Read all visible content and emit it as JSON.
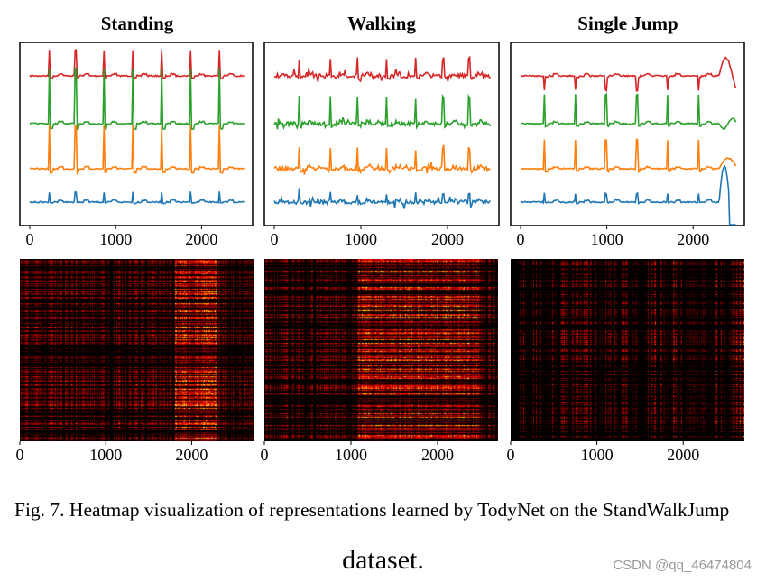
{
  "chart_data": [
    {
      "type": "line",
      "title": "Standing",
      "xlim": [
        0,
        2500
      ],
      "xticks": [
        "0",
        "1000",
        "2000"
      ],
      "grid": false,
      "series_colors": [
        "#d62728",
        "#2ca02c",
        "#ff7f0e",
        "#1f77b4"
      ],
      "spikes_x": [
        225,
        535,
        860,
        1200,
        1540,
        1870,
        2210
      ],
      "spike_amplitude": [
        0.9,
        1.9,
        1.5,
        0.35
      ],
      "disruption_from": null
    },
    {
      "type": "line",
      "title": "Walking",
      "xlim": [
        0,
        2500
      ],
      "xticks": [
        "0",
        "1000",
        "2000"
      ],
      "grid": false,
      "series_colors": [
        "#d62728",
        "#2ca02c",
        "#ff7f0e",
        "#1f77b4"
      ],
      "spikes_x": [
        290,
        650,
        960,
        1300,
        1630,
        1950,
        2250
      ],
      "spike_amplitude": [
        0.6,
        0.9,
        0.7,
        0.3
      ],
      "disruption_from": null
    },
    {
      "type": "line",
      "title": "Single Jump",
      "xlim": [
        0,
        2500
      ],
      "xticks": [
        "0",
        "1000",
        "2000"
      ],
      "grid": false,
      "series_colors": [
        "#d62728",
        "#2ca02c",
        "#ff7f0e",
        "#1f77b4"
      ],
      "spikes_x": [
        280,
        640,
        990,
        1350,
        1700,
        2060
      ],
      "spike_amplitude": [
        -0.5,
        1.0,
        1.0,
        0.3
      ],
      "disruption_from": 2300
    },
    {
      "type": "heatmap",
      "title": "",
      "xlim": [
        0,
        2500
      ],
      "xticks": [
        "0",
        "1000",
        "2000"
      ],
      "colormap": "hot",
      "hot_regions": [
        [
          1650,
          2100
        ]
      ]
    },
    {
      "type": "heatmap",
      "title": "",
      "xlim": [
        0,
        2500
      ],
      "xticks": [
        "0",
        "1000",
        "2000"
      ],
      "colormap": "hot",
      "hot_regions": [
        [
          1000,
          2300
        ]
      ]
    },
    {
      "type": "heatmap",
      "title": "",
      "xlim": [
        0,
        2500
      ],
      "xticks": [
        "0",
        "1000",
        "2000"
      ],
      "colormap": "hot",
      "hot_regions": [
        [
          2350,
          2500
        ]
      ]
    }
  ],
  "caption": {
    "text": "Fig. 7.  Heatmap visualization of representations learned by TodyNet on the StandWalkJump",
    "tail": "dataset."
  },
  "watermark": "CSDN @qq_46474804"
}
